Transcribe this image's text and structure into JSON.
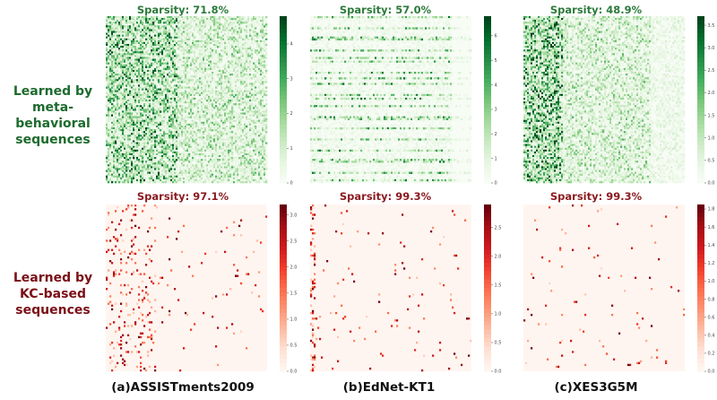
{
  "row_labels": {
    "top": [
      "Learned by",
      "meta-behavioral",
      "sequences"
    ],
    "bottom": [
      "Learned by",
      "KC-based",
      "sequences"
    ]
  },
  "dataset_labels": [
    "(a)ASSISTments2009",
    "(b)EdNet-KT1",
    "(c)XES3G5M"
  ],
  "colors": {
    "green_dark": "#00441b",
    "green_light": "#f7fcf5",
    "red_dark": "#67000d",
    "red_light": "#fff5f0",
    "row_label_green": "#1e6b2e",
    "row_label_red": "#7a1016"
  },
  "chart_data": [
    {
      "type": "heatmap",
      "title": "Sparsity: 71.8%",
      "dataset": "(a)ASSISTments2009",
      "row": "meta-behavioral",
      "colormap": "Greens",
      "sparsity": 0.718,
      "vmin": 0,
      "vmax": 4.8,
      "colorbar_ticks": [
        0,
        1,
        2,
        3,
        4
      ]
    },
    {
      "type": "heatmap",
      "title": "Sparsity: 57.0%",
      "dataset": "(b)EdNet-KT1",
      "row": "meta-behavioral",
      "colormap": "Greens",
      "sparsity": 0.57,
      "vmin": 0,
      "vmax": 6.8,
      "colorbar_ticks": [
        0,
        1,
        2,
        3,
        4,
        5,
        6
      ]
    },
    {
      "type": "heatmap",
      "title": "Sparsity: 48.9%",
      "dataset": "(c)XES3G5M",
      "row": "meta-behavioral",
      "colormap": "Greens",
      "sparsity": 0.489,
      "vmin": 0,
      "vmax": 3.7,
      "colorbar_ticks": [
        0.0,
        0.5,
        1.0,
        1.5,
        2.0,
        2.5,
        3.0,
        3.5
      ]
    },
    {
      "type": "heatmap",
      "title": "Sparsity: 97.1%",
      "dataset": "(a)ASSISTments2009",
      "row": "KC-based",
      "colormap": "Reds",
      "sparsity": 0.971,
      "vmin": 0,
      "vmax": 3.2,
      "colorbar_ticks": [
        0.0,
        0.5,
        1.0,
        1.5,
        2.0,
        2.5,
        3.0
      ]
    },
    {
      "type": "heatmap",
      "title": "Sparsity: 99.3%",
      "dataset": "(b)EdNet-KT1",
      "row": "KC-based",
      "colormap": "Reds",
      "sparsity": 0.993,
      "vmin": 0,
      "vmax": 2.9,
      "colorbar_ticks": [
        0.0,
        0.5,
        1.0,
        1.5,
        2.0,
        2.5
      ]
    },
    {
      "type": "heatmap",
      "title": "Sparsity: 99.3%",
      "dataset": "(c)XES3G5M",
      "row": "KC-based",
      "colormap": "Reds",
      "sparsity": 0.993,
      "vmin": 0,
      "vmax": 1.85,
      "colorbar_ticks": [
        0.0,
        0.2,
        0.4,
        0.6,
        0.8,
        1.0,
        1.2,
        1.4,
        1.6,
        1.8
      ]
    }
  ]
}
